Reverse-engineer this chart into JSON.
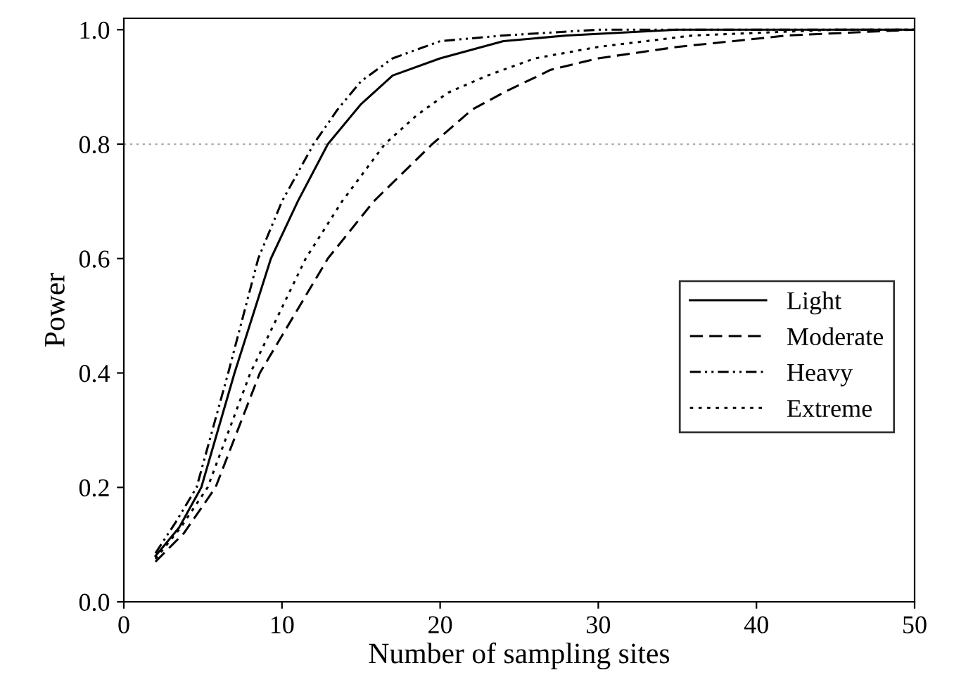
{
  "chart_data": {
    "type": "line",
    "xlabel": "Number of sampling sites",
    "ylabel": "Power",
    "xlim": [
      0,
      50
    ],
    "xticks": [
      0,
      10,
      20,
      30,
      40,
      50
    ],
    "ylim": [
      0,
      1.02
    ],
    "yticks": [
      {
        "value": 0,
        "label": "0.0"
      },
      0.2,
      0.4,
      0.6,
      0.8,
      {
        "value": 1,
        "label": "1.0"
      }
    ],
    "grid": false,
    "legend": "right",
    "marker": "none",
    "ref_lines": [
      {
        "axis": "y",
        "value": 0.8,
        "color": "#aaaaaa",
        "line_style": "dotted"
      }
    ],
    "series": [
      {
        "name": "Light",
        "color": "#000000",
        "line_style": "solid",
        "x": [
          2,
          3.5,
          4.9,
          7.0,
          9.3,
          11,
          12.9,
          15,
          17,
          20,
          24,
          28,
          35,
          50
        ],
        "values": [
          0.08,
          0.13,
          0.2,
          0.4,
          0.6,
          0.7,
          0.8,
          0.87,
          0.92,
          0.95,
          0.98,
          0.99,
          1.0,
          1.0
        ]
      },
      {
        "name": "Moderate",
        "color": "#000000",
        "line_style": "dashed",
        "x": [
          2,
          3.8,
          5.8,
          8.6,
          12.9,
          15.8,
          19.5,
          22,
          24,
          27,
          30,
          35,
          42,
          50
        ],
        "values": [
          0.07,
          0.12,
          0.2,
          0.4,
          0.6,
          0.7,
          0.8,
          0.86,
          0.89,
          0.93,
          0.95,
          0.97,
          0.99,
          1.0
        ]
      },
      {
        "name": "Heavy",
        "color": "#000000",
        "line_style": "dashdot",
        "x": [
          2,
          3.3,
          4.6,
          6.6,
          8.5,
          10,
          12,
          13.5,
          15,
          17,
          20,
          24,
          30,
          50
        ],
        "values": [
          0.085,
          0.14,
          0.2,
          0.4,
          0.6,
          0.7,
          0.8,
          0.86,
          0.91,
          0.95,
          0.98,
          0.99,
          1.0,
          1.0
        ]
      },
      {
        "name": "Extreme",
        "color": "#000000",
        "line_style": "dotted",
        "x": [
          2,
          3.6,
          5.3,
          8,
          11.5,
          13.8,
          16.5,
          18.5,
          20.5,
          23,
          26,
          30,
          36,
          45,
          50
        ],
        "values": [
          0.075,
          0.13,
          0.2,
          0.4,
          0.6,
          0.7,
          0.8,
          0.85,
          0.89,
          0.92,
          0.95,
          0.97,
          0.99,
          1.0,
          1.0
        ]
      }
    ]
  }
}
